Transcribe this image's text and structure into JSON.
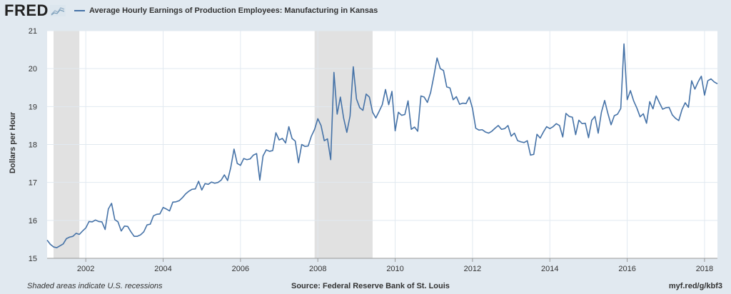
{
  "logo": {
    "text": "FRED",
    "icon": "line-chart-icon"
  },
  "legend": {
    "label": "Average Hourly Earnings of Production Employees: Manufacturing in Kansas",
    "color": "#4572a7"
  },
  "footer": {
    "left": "Shaded areas indicate U.S. recessions",
    "mid": "Source: Federal Reserve Bank of St. Louis",
    "right": "myf.red/g/kbf3"
  },
  "colors": {
    "background": "#e1e9f0",
    "plot": "#ffffff",
    "line": "#4572a7",
    "recession": "#e1e1e1",
    "grid": "#e1e9f0"
  },
  "chart_data": {
    "type": "line",
    "title": "",
    "xlabel": "",
    "ylabel": "Dollars per Hour",
    "xlim": [
      "2001-01",
      "2018-05"
    ],
    "ylim": [
      15,
      21
    ],
    "yticks": [
      "15",
      "16",
      "17",
      "18",
      "19",
      "20",
      "21"
    ],
    "xticks": [
      "2002",
      "2004",
      "2006",
      "2008",
      "2010",
      "2012",
      "2014",
      "2016",
      "2018"
    ],
    "grid": true,
    "recessions": [
      [
        "2001-03",
        "2001-11"
      ],
      [
        "2007-12",
        "2009-06"
      ]
    ],
    "series": [
      {
        "name": "Average Hourly Earnings of Production Employees: Manufacturing in Kansas",
        "x": [
          "2001-01",
          "2001-02",
          "2001-03",
          "2001-04",
          "2001-05",
          "2001-06",
          "2001-07",
          "2001-08",
          "2001-09",
          "2001-10",
          "2001-11",
          "2001-12",
          "2002-01",
          "2002-02",
          "2002-03",
          "2002-04",
          "2002-05",
          "2002-06",
          "2002-07",
          "2002-08",
          "2002-09",
          "2002-10",
          "2002-11",
          "2002-12",
          "2003-01",
          "2003-02",
          "2003-03",
          "2003-04",
          "2003-05",
          "2003-06",
          "2003-07",
          "2003-08",
          "2003-09",
          "2003-10",
          "2003-11",
          "2003-12",
          "2004-01",
          "2004-02",
          "2004-03",
          "2004-04",
          "2004-05",
          "2004-06",
          "2004-07",
          "2004-08",
          "2004-09",
          "2004-10",
          "2004-11",
          "2004-12",
          "2005-01",
          "2005-02",
          "2005-03",
          "2005-04",
          "2005-05",
          "2005-06",
          "2005-07",
          "2005-08",
          "2005-09",
          "2005-10",
          "2005-11",
          "2005-12",
          "2006-01",
          "2006-02",
          "2006-03",
          "2006-04",
          "2006-05",
          "2006-06",
          "2006-07",
          "2006-08",
          "2006-09",
          "2006-10",
          "2006-11",
          "2006-12",
          "2007-01",
          "2007-02",
          "2007-03",
          "2007-04",
          "2007-05",
          "2007-06",
          "2007-07",
          "2007-08",
          "2007-09",
          "2007-10",
          "2007-11",
          "2007-12",
          "2008-01",
          "2008-02",
          "2008-03",
          "2008-04",
          "2008-05",
          "2008-06",
          "2008-07",
          "2008-08",
          "2008-09",
          "2008-10",
          "2008-11",
          "2008-12",
          "2009-01",
          "2009-02",
          "2009-03",
          "2009-04",
          "2009-05",
          "2009-06",
          "2009-07",
          "2009-08",
          "2009-09",
          "2009-10",
          "2009-11",
          "2009-12",
          "2010-01",
          "2010-02",
          "2010-03",
          "2010-04",
          "2010-05",
          "2010-06",
          "2010-07",
          "2010-08",
          "2010-09",
          "2010-10",
          "2010-11",
          "2010-12",
          "2011-01",
          "2011-02",
          "2011-03",
          "2011-04",
          "2011-05",
          "2011-06",
          "2011-07",
          "2011-08",
          "2011-09",
          "2011-10",
          "2011-11",
          "2011-12",
          "2012-01",
          "2012-02",
          "2012-03",
          "2012-04",
          "2012-05",
          "2012-06",
          "2012-07",
          "2012-08",
          "2012-09",
          "2012-10",
          "2012-11",
          "2012-12",
          "2013-01",
          "2013-02",
          "2013-03",
          "2013-04",
          "2013-05",
          "2013-06",
          "2013-07",
          "2013-08",
          "2013-09",
          "2013-10",
          "2013-11",
          "2013-12",
          "2014-01",
          "2014-02",
          "2014-03",
          "2014-04",
          "2014-05",
          "2014-06",
          "2014-07",
          "2014-08",
          "2014-09",
          "2014-10",
          "2014-11",
          "2014-12",
          "2015-01",
          "2015-02",
          "2015-03",
          "2015-04",
          "2015-05",
          "2015-06",
          "2015-07",
          "2015-08",
          "2015-09",
          "2015-10",
          "2015-11",
          "2015-12",
          "2016-01",
          "2016-02",
          "2016-03",
          "2016-04",
          "2016-05",
          "2016-06",
          "2016-07",
          "2016-08",
          "2016-09",
          "2016-10",
          "2016-11",
          "2016-12",
          "2017-01",
          "2017-02",
          "2017-03",
          "2017-04",
          "2017-05",
          "2017-06",
          "2017-07",
          "2017-08",
          "2017-09",
          "2017-10",
          "2017-11",
          "2017-12",
          "2018-01",
          "2018-02",
          "2018-03",
          "2018-04",
          "2018-05"
        ],
        "y": [
          15.48,
          15.37,
          15.3,
          15.28,
          15.33,
          15.38,
          15.52,
          15.56,
          15.58,
          15.66,
          15.63,
          15.72,
          15.8,
          15.97,
          15.96,
          16.01,
          15.97,
          15.96,
          15.76,
          16.3,
          16.45,
          16.02,
          15.96,
          15.72,
          15.85,
          15.84,
          15.7,
          15.58,
          15.58,
          15.62,
          15.7,
          15.88,
          15.9,
          16.12,
          16.16,
          16.17,
          16.34,
          16.3,
          16.25,
          16.48,
          16.49,
          16.52,
          16.6,
          16.7,
          16.77,
          16.82,
          16.83,
          17.03,
          16.8,
          16.97,
          16.95,
          17.01,
          16.98,
          17.0,
          17.06,
          17.2,
          17.05,
          17.4,
          17.88,
          17.5,
          17.45,
          17.63,
          17.6,
          17.62,
          17.72,
          17.76,
          17.06,
          17.7,
          17.86,
          17.82,
          17.84,
          18.31,
          18.12,
          18.16,
          18.04,
          18.47,
          18.16,
          18.09,
          17.52,
          18.0,
          17.95,
          17.96,
          18.22,
          18.4,
          18.68,
          18.5,
          18.1,
          18.15,
          17.6,
          19.9,
          18.8,
          19.25,
          18.7,
          18.32,
          18.75,
          20.05,
          19.2,
          18.97,
          18.9,
          19.33,
          19.25,
          18.85,
          18.7,
          18.87,
          19.05,
          19.45,
          19.05,
          19.4,
          18.36,
          18.85,
          18.77,
          18.79,
          19.15,
          18.4,
          18.46,
          18.35,
          19.28,
          19.25,
          19.11,
          19.37,
          19.8,
          20.28,
          20.0,
          19.95,
          19.52,
          19.49,
          19.18,
          19.26,
          19.06,
          19.09,
          19.08,
          19.25,
          18.95,
          18.43,
          18.38,
          18.39,
          18.33,
          18.3,
          18.35,
          18.43,
          18.5,
          18.4,
          18.42,
          18.5,
          18.22,
          18.3,
          18.1,
          18.07,
          18.05,
          18.1,
          17.72,
          17.74,
          18.27,
          18.17,
          18.33,
          18.47,
          18.42,
          18.47,
          18.55,
          18.5,
          18.2,
          18.82,
          18.74,
          18.72,
          18.26,
          18.64,
          18.55,
          18.56,
          18.18,
          18.64,
          18.74,
          18.3,
          18.85,
          19.16,
          18.82,
          18.52,
          18.76,
          18.8,
          18.95,
          20.65,
          19.18,
          19.42,
          19.15,
          18.96,
          18.73,
          18.81,
          18.56,
          19.13,
          18.94,
          19.28,
          19.1,
          18.93,
          18.97,
          18.98,
          18.78,
          18.69,
          18.63,
          18.92,
          19.1,
          18.98,
          19.68,
          19.46,
          19.65,
          19.8,
          19.3,
          19.68,
          19.73,
          19.65,
          19.6
        ]
      }
    ]
  }
}
